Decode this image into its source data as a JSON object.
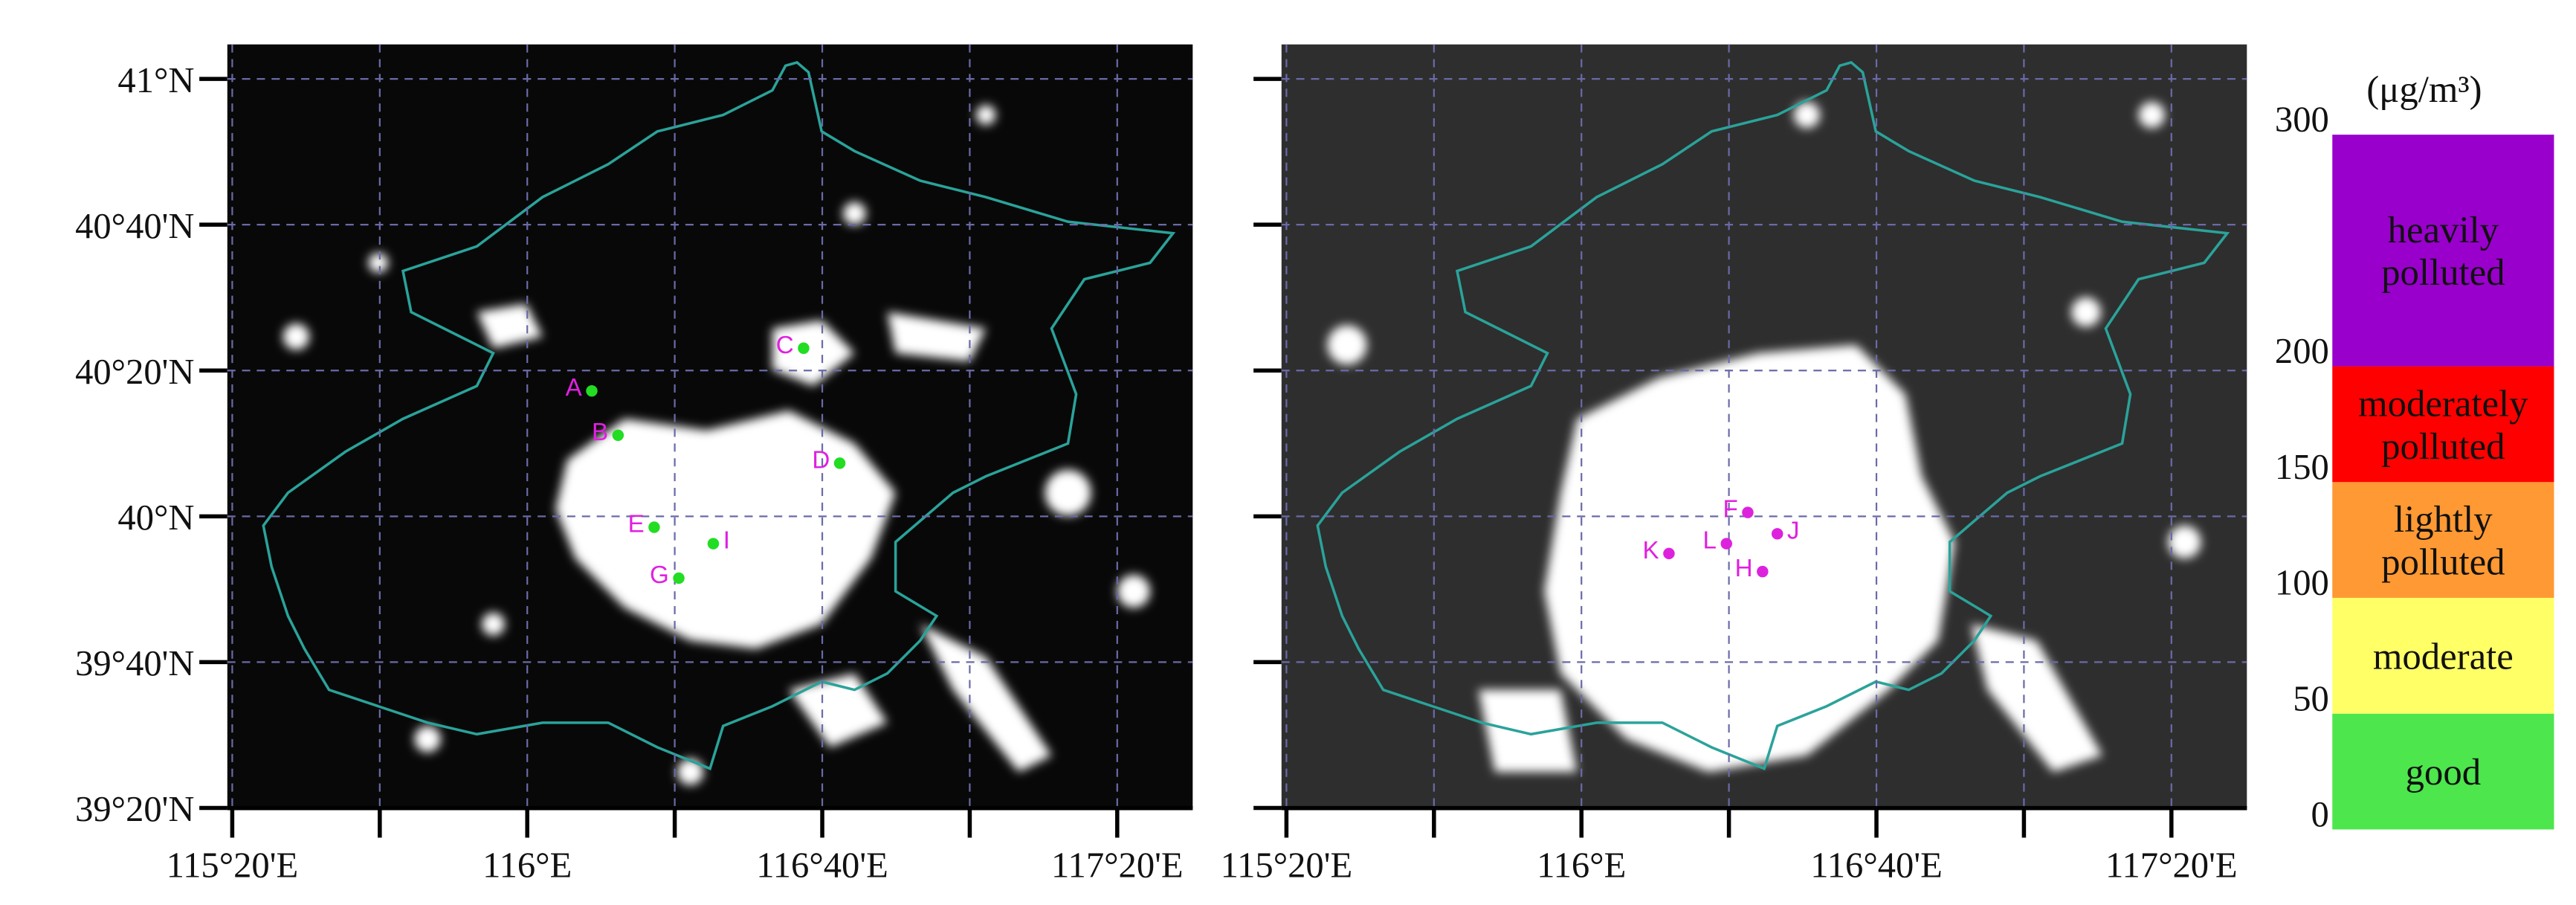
{
  "maps": [
    {
      "xlim": [
        115.322,
        117.504
      ],
      "ylim": [
        39.333,
        41.079
      ],
      "xticks": [
        {
          "value": 115.3333,
          "label": "115°20'E"
        },
        {
          "value": 116,
          "label": "116°E"
        },
        {
          "value": 116.6667,
          "label": "116°40'E"
        },
        {
          "value": 117.3333,
          "label": "117°20'E"
        }
      ],
      "xticks_minor": [
        115.6667,
        116.3333,
        117
      ],
      "yticks": [
        {
          "value": 41,
          "label": "41°N"
        },
        {
          "value": 40.6667,
          "label": "40°40'N"
        },
        {
          "value": 40.3333,
          "label": "40°20'N"
        },
        {
          "value": 40,
          "label": "40°N"
        },
        {
          "value": 39.6667,
          "label": "39°40'N"
        },
        {
          "value": 39.3333,
          "label": "39°20'N"
        }
      ],
      "points": [
        "A",
        "B",
        "C",
        "D",
        "E",
        "I",
        "G"
      ]
    },
    {
      "xlim": [
        115.322,
        117.504
      ],
      "ylim": [
        39.333,
        41.079
      ],
      "xticks": [
        {
          "value": 115.3333,
          "label": "115°20'E"
        },
        {
          "value": 116,
          "label": "116°E"
        },
        {
          "value": 116.6667,
          "label": "116°40'E"
        },
        {
          "value": 117.3333,
          "label": "117°20'E"
        }
      ],
      "xticks_minor": [
        115.6667,
        116.3333,
        117
      ],
      "yticks_minor": [
        41,
        40.6667,
        40.3333,
        40,
        39.6667,
        39.3333
      ],
      "points": [
        "F",
        "J",
        "K",
        "L",
        "H"
      ]
    }
  ],
  "colorbar": {
    "unit": "(μg/m³)",
    "lim": [
      0,
      300
    ],
    "ticks": [
      0,
      50,
      100,
      150,
      200,
      300
    ],
    "levels": [
      {
        "label": [
          "good"
        ],
        "color": "#4de64d"
      },
      {
        "label": [
          "moderate"
        ],
        "color": "#ffff66"
      },
      {
        "label": [
          "lightly",
          "polluted"
        ],
        "color": "#ff9933"
      },
      {
        "label": [
          "moderately",
          "polluted"
        ],
        "color": "#ff0000"
      },
      {
        "label": [
          "heavily",
          "polluted"
        ],
        "color": "#9900cc"
      }
    ]
  }
}
